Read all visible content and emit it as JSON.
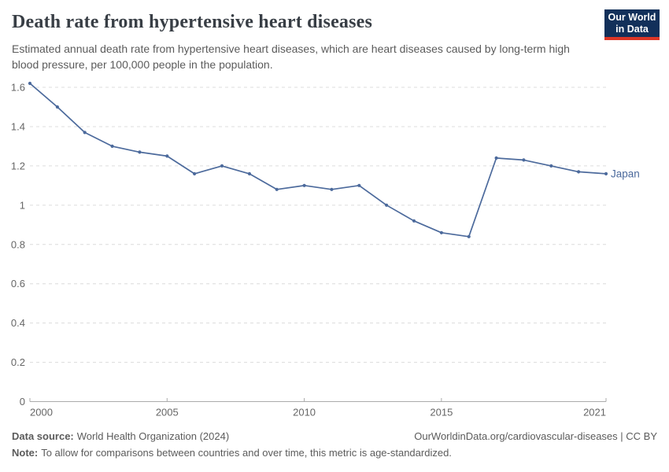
{
  "header": {
    "title": "Death rate from hypertensive heart diseases",
    "subtitle": "Estimated annual death rate from hypertensive heart diseases, which are heart diseases caused by long-term high blood pressure, per 100,000 people in the population.",
    "logo": {
      "line1": "Our World",
      "line2": "in Data"
    }
  },
  "chart_data": {
    "type": "line",
    "title": "Death rate from hypertensive heart diseases",
    "xlabel": "",
    "ylabel": "",
    "x": [
      2000,
      2001,
      2002,
      2003,
      2004,
      2005,
      2006,
      2007,
      2008,
      2009,
      2010,
      2011,
      2012,
      2013,
      2014,
      2015,
      2016,
      2017,
      2018,
      2019,
      2020,
      2021
    ],
    "series": [
      {
        "name": "Japan",
        "color": "#4c6a9c",
        "values": [
          1.62,
          1.5,
          1.37,
          1.3,
          1.27,
          1.25,
          1.16,
          1.2,
          1.16,
          1.08,
          1.1,
          1.08,
          1.1,
          1.0,
          0.92,
          0.86,
          0.84,
          1.24,
          1.23,
          1.2,
          1.17,
          1.16
        ]
      }
    ],
    "ylim": [
      0,
      1.6
    ],
    "yticks": [
      0,
      0.2,
      0.4,
      0.6,
      0.8,
      1,
      1.2,
      1.4,
      1.6
    ],
    "xticks": [
      2000,
      2005,
      2010,
      2015,
      2021
    ],
    "grid": "horizontal-dashed",
    "legend_position": "end-of-line-label"
  },
  "footer": {
    "data_source_label": "Data source:",
    "data_source": "World Health Organization (2024)",
    "credit": "OurWorldinData.org/cardiovascular-diseases | CC BY",
    "note_label": "Note:",
    "note": "To allow for comparisons between countries and over time, this metric is age-standardized."
  },
  "colors": {
    "series_blue": "#4c6a9c",
    "logo_navy": "#12305a",
    "logo_red": "#dc3626",
    "gridline": "#dcdcdc",
    "axis": "#ababab",
    "tick_text": "#666666",
    "title_text": "#383e45",
    "body_text": "#5b5b5b"
  }
}
